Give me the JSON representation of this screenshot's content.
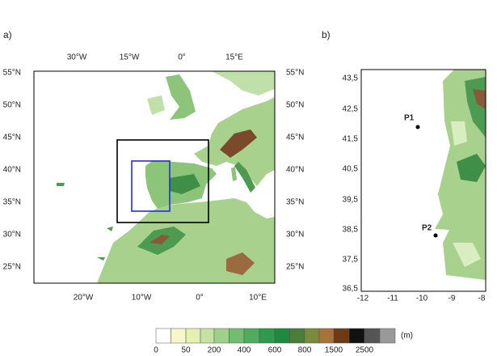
{
  "panel_a": {
    "label": "a)",
    "top_ticks": [
      "30°W",
      "15°W",
      "0°",
      "15°E"
    ],
    "bottom_ticks": [
      "20°W",
      "10°W",
      "0°",
      "10°E"
    ],
    "lat_ticks": [
      "55°N",
      "50°N",
      "45°N",
      "40°N",
      "35°N",
      "30°N",
      "25°N"
    ]
  },
  "panel_b": {
    "label": "b)",
    "lat_ticks": [
      "43,5",
      "42,5",
      "41,5",
      "40,5",
      "39,5",
      "38,5",
      "37,5",
      "36,5"
    ],
    "lon_ticks": [
      "-12",
      "-11",
      "-10",
      "-9",
      "-8"
    ],
    "points": [
      "P1",
      "P2"
    ]
  },
  "colorbar": {
    "labels": [
      "0",
      "50",
      "200",
      "400",
      "600",
      "800",
      "1500",
      "2500"
    ],
    "unit": "(m)"
  }
}
